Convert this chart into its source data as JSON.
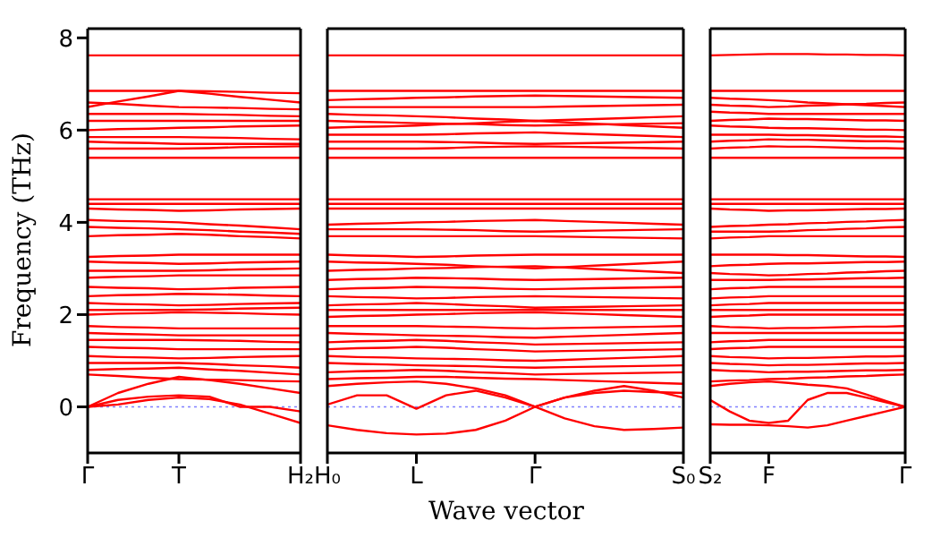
{
  "chart_data": [
    {
      "type": "line",
      "ylabel": "Frequency (THz)",
      "color": "#ff0000",
      "marker": "none",
      "line_style": "solid",
      "categories": [
        "Γ",
        null,
        null,
        "T",
        null,
        null,
        null,
        "H₂"
      ],
      "ylim": [
        -1,
        8.2
      ],
      "yticks": [
        0,
        2,
        4,
        6,
        8
      ],
      "ref_lines": [
        {
          "axis": "y",
          "value": 0,
          "color": "#8080ff",
          "line_style": "dotted"
        }
      ],
      "series": [
        {
          "values": [
            7.62,
            7.62,
            7.62,
            7.62,
            7.62,
            7.62,
            7.62,
            7.62
          ]
        },
        {
          "values": [
            6.85,
            6.85,
            6.85,
            6.85,
            6.84,
            6.83,
            6.81,
            6.8
          ]
        },
        {
          "values": [
            6.5,
            6.62,
            6.73,
            6.85,
            6.79,
            6.72,
            6.66,
            6.6
          ]
        },
        {
          "values": [
            6.6,
            6.57,
            6.53,
            6.5,
            6.49,
            6.48,
            6.46,
            6.45
          ]
        },
        {
          "values": [
            6.35,
            6.35,
            6.35,
            6.35,
            6.34,
            6.33,
            6.31,
            6.3
          ]
        },
        {
          "values": [
            6.2,
            6.2,
            6.2,
            6.2,
            6.2,
            6.2,
            6.2,
            6.2
          ]
        },
        {
          "values": [
            6.0,
            6.02,
            6.03,
            6.05,
            6.06,
            6.08,
            6.09,
            6.1
          ]
        },
        {
          "values": [
            5.85,
            5.85,
            5.85,
            5.85,
            5.84,
            5.83,
            5.81,
            5.8
          ]
        },
        {
          "values": [
            5.75,
            5.73,
            5.72,
            5.7,
            5.7,
            5.7,
            5.7,
            5.7
          ]
        },
        {
          "values": [
            5.6,
            5.6,
            5.6,
            5.6,
            5.61,
            5.63,
            5.64,
            5.65
          ]
        },
        {
          "values": [
            5.4,
            5.4,
            5.4,
            5.4,
            5.4,
            5.4,
            5.4,
            5.4
          ]
        },
        {
          "values": [
            4.5,
            4.5,
            4.5,
            4.5,
            4.5,
            4.5,
            4.5,
            4.5
          ]
        },
        {
          "values": [
            4.4,
            4.4,
            4.4,
            4.4,
            4.4,
            4.4,
            4.4,
            4.4
          ]
        },
        {
          "values": [
            4.3,
            4.28,
            4.27,
            4.25,
            4.26,
            4.28,
            4.29,
            4.3
          ]
        },
        {
          "values": [
            4.05,
            4.03,
            4.02,
            4.0,
            3.96,
            3.93,
            3.89,
            3.85
          ]
        },
        {
          "values": [
            3.9,
            3.88,
            3.87,
            3.85,
            3.83,
            3.8,
            3.78,
            3.75
          ]
        },
        {
          "values": [
            3.7,
            3.72,
            3.73,
            3.75,
            3.73,
            3.7,
            3.68,
            3.65
          ]
        },
        {
          "values": [
            3.25,
            3.27,
            3.28,
            3.3,
            3.3,
            3.3,
            3.3,
            3.3
          ]
        },
        {
          "values": [
            3.15,
            3.13,
            3.12,
            3.1,
            3.11,
            3.13,
            3.14,
            3.15
          ]
        },
        {
          "values": [
            2.95,
            2.95,
            2.95,
            2.95,
            2.96,
            2.98,
            2.99,
            3.0
          ]
        },
        {
          "values": [
            2.8,
            2.82,
            2.83,
            2.85,
            2.85,
            2.85,
            2.85,
            2.85
          ]
        },
        {
          "values": [
            2.6,
            2.58,
            2.57,
            2.55,
            2.56,
            2.58,
            2.59,
            2.6
          ]
        },
        {
          "values": [
            2.4,
            2.42,
            2.43,
            2.45,
            2.44,
            2.43,
            2.41,
            2.4
          ]
        },
        {
          "values": [
            2.25,
            2.23,
            2.22,
            2.2,
            2.21,
            2.23,
            2.24,
            2.25
          ]
        },
        {
          "values": [
            2.1,
            2.1,
            2.1,
            2.1,
            2.11,
            2.13,
            2.14,
            2.15
          ]
        },
        {
          "values": [
            2.0,
            2.02,
            2.03,
            2.05,
            2.04,
            2.03,
            2.01,
            2.0
          ]
        },
        {
          "values": [
            1.75,
            1.73,
            1.72,
            1.7,
            1.7,
            1.7,
            1.7,
            1.7
          ]
        },
        {
          "values": [
            1.6,
            1.58,
            1.57,
            1.55,
            1.55,
            1.55,
            1.55,
            1.55
          ]
        },
        {
          "values": [
            1.45,
            1.45,
            1.45,
            1.45,
            1.44,
            1.43,
            1.41,
            1.4
          ]
        },
        {
          "values": [
            1.3,
            1.28,
            1.27,
            1.25,
            1.25,
            1.25,
            1.25,
            1.25
          ]
        },
        {
          "values": [
            1.1,
            1.08,
            1.07,
            1.05,
            1.06,
            1.08,
            1.09,
            1.1
          ]
        },
        {
          "values": [
            0.95,
            0.95,
            0.95,
            0.95,
            0.93,
            0.9,
            0.88,
            0.85
          ]
        },
        {
          "values": [
            0.8,
            0.82,
            0.83,
            0.85,
            0.81,
            0.78,
            0.74,
            0.7
          ]
        },
        {
          "values": [
            0.7,
            0.67,
            0.63,
            0.6,
            0.59,
            0.58,
            0.56,
            0.55
          ]
        },
        {
          "values": [
            0,
            0.3,
            0.5,
            0.65,
            0.58,
            0.5,
            0.4,
            0.3
          ]
        },
        {
          "values": [
            0,
            0.15,
            0.22,
            0.25,
            0.22,
            0,
            0,
            -0.1
          ]
        },
        {
          "values": [
            0,
            0.05,
            0.15,
            0.2,
            0.17,
            0.05,
            -0.15,
            -0.35
          ]
        }
      ]
    },
    {
      "type": "line",
      "xlabel": "Wave vector",
      "color": "#ff0000",
      "marker": "none",
      "line_style": "solid",
      "tick_labels": "x",
      "categories": [
        "H₀",
        null,
        null,
        "L",
        null,
        null,
        null,
        "Γ",
        null,
        null,
        null,
        null,
        "S₀"
      ],
      "ylim": [
        -1,
        8.2
      ],
      "ref_lines": [
        {
          "axis": "y",
          "value": 0,
          "color": "#8080ff",
          "line_style": "dotted"
        }
      ],
      "series": [
        {
          "values": [
            7.62,
            7.62,
            7.62,
            7.62,
            7.62,
            7.62,
            7.62,
            7.62,
            7.62,
            7.62,
            7.62,
            7.62,
            7.62
          ]
        },
        {
          "values": [
            6.85,
            6.85,
            6.85,
            6.85,
            6.85,
            6.85,
            6.85,
            6.85,
            6.85,
            6.85,
            6.85,
            6.85,
            6.85
          ]
        },
        {
          "values": [
            6.65,
            6.67,
            6.68,
            6.7,
            6.71,
            6.73,
            6.74,
            6.75,
            6.74,
            6.73,
            6.72,
            6.71,
            6.7
          ]
        },
        {
          "values": [
            6.5,
            6.5,
            6.5,
            6.5,
            6.5,
            6.5,
            6.5,
            6.5,
            6.51,
            6.52,
            6.53,
            6.54,
            6.55
          ]
        },
        {
          "values": [
            6.35,
            6.33,
            6.32,
            6.3,
            6.28,
            6.25,
            6.23,
            6.2,
            6.22,
            6.24,
            6.26,
            6.28,
            6.3
          ]
        },
        {
          "values": [
            6.2,
            6.18,
            6.17,
            6.15,
            6.14,
            6.13,
            6.11,
            6.1,
            6.11,
            6.12,
            6.13,
            6.14,
            6.15
          ]
        },
        {
          "values": [
            6.05,
            6.07,
            6.08,
            6.1,
            6.13,
            6.15,
            6.18,
            6.2,
            6.17,
            6.14,
            6.11,
            6.08,
            6.05
          ]
        },
        {
          "values": [
            5.9,
            5.9,
            5.9,
            5.9,
            5.91,
            5.93,
            5.94,
            5.95,
            5.93,
            5.91,
            5.89,
            5.87,
            5.85
          ]
        },
        {
          "values": [
            5.75,
            5.75,
            5.75,
            5.75,
            5.74,
            5.73,
            5.71,
            5.7,
            5.71,
            5.72,
            5.73,
            5.74,
            5.75
          ]
        },
        {
          "values": [
            5.6,
            5.6,
            5.6,
            5.6,
            5.61,
            5.63,
            5.64,
            5.65,
            5.64,
            5.63,
            5.62,
            5.61,
            5.6
          ]
        },
        {
          "values": [
            5.4,
            5.4,
            5.4,
            5.4,
            5.4,
            5.4,
            5.4,
            5.4,
            5.4,
            5.4,
            5.4,
            5.4,
            5.4
          ]
        },
        {
          "values": [
            4.5,
            4.5,
            4.5,
            4.5,
            4.5,
            4.5,
            4.5,
            4.5,
            4.5,
            4.5,
            4.5,
            4.5,
            4.5
          ]
        },
        {
          "values": [
            4.4,
            4.4,
            4.4,
            4.4,
            4.4,
            4.4,
            4.4,
            4.4,
            4.4,
            4.4,
            4.4,
            4.4,
            4.4
          ]
        },
        {
          "values": [
            4.3,
            4.3,
            4.3,
            4.3,
            4.3,
            4.3,
            4.3,
            4.3,
            4.3,
            4.3,
            4.3,
            4.3,
            4.3
          ]
        },
        {
          "values": [
            3.95,
            3.97,
            3.98,
            4.0,
            4.01,
            4.03,
            4.04,
            4.05,
            4.03,
            4.01,
            3.99,
            3.97,
            3.95
          ]
        },
        {
          "values": [
            3.85,
            3.85,
            3.85,
            3.85,
            3.84,
            3.83,
            3.81,
            3.8,
            3.81,
            3.82,
            3.83,
            3.84,
            3.85
          ]
        },
        {
          "values": [
            3.7,
            3.7,
            3.7,
            3.7,
            3.7,
            3.7,
            3.7,
            3.7,
            3.69,
            3.68,
            3.67,
            3.66,
            3.65
          ]
        },
        {
          "values": [
            3.3,
            3.28,
            3.27,
            3.25,
            3.26,
            3.28,
            3.29,
            3.3,
            3.3,
            3.3,
            3.3,
            3.3,
            3.3
          ]
        },
        {
          "values": [
            3.15,
            3.13,
            3.12,
            3.1,
            3.08,
            3.05,
            3.03,
            3.0,
            3.03,
            3.06,
            3.09,
            3.12,
            3.15
          ]
        },
        {
          "values": [
            2.95,
            2.97,
            2.98,
            3.0,
            3.01,
            3.03,
            3.04,
            3.05,
            3.02,
            2.99,
            2.96,
            2.93,
            2.9
          ]
        },
        {
          "values": [
            2.75,
            2.77,
            2.78,
            2.8,
            2.79,
            2.78,
            2.76,
            2.75,
            2.76,
            2.77,
            2.78,
            2.79,
            2.8
          ]
        },
        {
          "values": [
            2.55,
            2.57,
            2.58,
            2.6,
            2.59,
            2.58,
            2.56,
            2.55,
            2.56,
            2.57,
            2.58,
            2.59,
            2.6
          ]
        },
        {
          "values": [
            2.4,
            2.38,
            2.37,
            2.35,
            2.36,
            2.38,
            2.39,
            2.4,
            2.39,
            2.38,
            2.37,
            2.36,
            2.35
          ]
        },
        {
          "values": [
            2.2,
            2.22,
            2.23,
            2.25,
            2.23,
            2.2,
            2.18,
            2.15,
            2.16,
            2.17,
            2.18,
            2.19,
            2.2
          ]
        },
        {
          "values": [
            2.1,
            2.1,
            2.1,
            2.1,
            2.1,
            2.1,
            2.1,
            2.1,
            2.1,
            2.1,
            2.1,
            2.1,
            2.1
          ]
        },
        {
          "values": [
            1.95,
            1.97,
            1.98,
            2.0,
            2.01,
            2.03,
            2.04,
            2.05,
            2.03,
            2.01,
            1.99,
            1.97,
            1.95
          ]
        },
        {
          "values": [
            1.75,
            1.75,
            1.75,
            1.75,
            1.74,
            1.73,
            1.71,
            1.7,
            1.71,
            1.72,
            1.73,
            1.74,
            1.75
          ]
        },
        {
          "values": [
            1.6,
            1.58,
            1.57,
            1.55,
            1.54,
            1.53,
            1.51,
            1.5,
            1.52,
            1.54,
            1.56,
            1.58,
            1.6
          ]
        },
        {
          "values": [
            1.4,
            1.42,
            1.43,
            1.45,
            1.43,
            1.4,
            1.38,
            1.35,
            1.36,
            1.37,
            1.38,
            1.39,
            1.4
          ]
        },
        {
          "values": [
            1.25,
            1.27,
            1.28,
            1.3,
            1.28,
            1.25,
            1.23,
            1.2,
            1.21,
            1.22,
            1.23,
            1.24,
            1.25
          ]
        },
        {
          "values": [
            1.1,
            1.08,
            1.07,
            1.05,
            1.04,
            1.03,
            1.01,
            1.0,
            1.02,
            1.04,
            1.06,
            1.08,
            1.1
          ]
        },
        {
          "values": [
            0.95,
            0.93,
            0.92,
            0.9,
            0.89,
            0.88,
            0.86,
            0.85,
            0.86,
            0.87,
            0.88,
            0.89,
            0.9
          ]
        },
        {
          "values": [
            0.75,
            0.77,
            0.78,
            0.8,
            0.78,
            0.75,
            0.73,
            0.7,
            0.71,
            0.72,
            0.73,
            0.74,
            0.75
          ]
        },
        {
          "values": [
            0.6,
            0.62,
            0.63,
            0.65,
            0.65,
            0.63,
            0.61,
            0.6,
            0.58,
            0.56,
            0.54,
            0.52,
            0.5
          ]
        },
        {
          "values": [
            -0.4,
            -0.5,
            -0.57,
            -0.6,
            -0.58,
            -0.5,
            -0.3,
            0,
            -0.25,
            -0.42,
            -0.5,
            -0.48,
            -0.45
          ]
        },
        {
          "values": [
            0.05,
            0.25,
            0.25,
            -0.04,
            0.25,
            0.35,
            0.2,
            0,
            0.2,
            0.35,
            0.45,
            0.35,
            0.2
          ]
        },
        {
          "values": [
            0.45,
            0.5,
            0.53,
            0.55,
            0.5,
            0.4,
            0.25,
            0,
            0.2,
            0.3,
            0.35,
            0.32,
            0.3
          ]
        }
      ]
    },
    {
      "type": "line",
      "color": "#ff0000",
      "marker": "none",
      "line_style": "solid",
      "tick_labels": "x",
      "categories": [
        "S₂",
        null,
        null,
        "F",
        null,
        null,
        null,
        null,
        null,
        null,
        "Γ"
      ],
      "ylim": [
        -1,
        8.2
      ],
      "ref_lines": [
        {
          "axis": "y",
          "value": 0,
          "color": "#8080ff",
          "line_style": "dotted"
        }
      ],
      "series": [
        {
          "values": [
            7.62,
            7.63,
            7.64,
            7.65,
            7.65,
            7.65,
            7.64,
            7.64,
            7.63,
            7.63,
            7.62
          ]
        },
        {
          "values": [
            6.85,
            6.85,
            6.85,
            6.85,
            6.85,
            6.85,
            6.85,
            6.85,
            6.85,
            6.85,
            6.85
          ]
        },
        {
          "values": [
            6.7,
            6.68,
            6.67,
            6.65,
            6.63,
            6.6,
            6.58,
            6.56,
            6.54,
            6.52,
            6.5
          ]
        },
        {
          "values": [
            6.55,
            6.53,
            6.52,
            6.5,
            6.51,
            6.53,
            6.54,
            6.56,
            6.57,
            6.59,
            6.6
          ]
        },
        {
          "values": [
            6.4,
            6.38,
            6.37,
            6.35,
            6.35,
            6.35,
            6.35,
            6.35,
            6.35,
            6.35,
            6.35
          ]
        },
        {
          "values": [
            6.2,
            6.22,
            6.23,
            6.25,
            6.24,
            6.24,
            6.23,
            6.22,
            6.21,
            6.21,
            6.2
          ]
        },
        {
          "values": [
            6.1,
            6.08,
            6.07,
            6.05,
            6.04,
            6.04,
            6.03,
            6.02,
            6.01,
            6.01,
            6.0
          ]
        },
        {
          "values": [
            5.9,
            5.9,
            5.9,
            5.9,
            5.89,
            5.89,
            5.88,
            5.87,
            5.86,
            5.86,
            5.85
          ]
        },
        {
          "values": [
            5.75,
            5.77,
            5.78,
            5.8,
            5.79,
            5.79,
            5.78,
            5.77,
            5.76,
            5.76,
            5.75
          ]
        },
        {
          "values": [
            5.6,
            5.62,
            5.63,
            5.65,
            5.64,
            5.64,
            5.63,
            5.62,
            5.61,
            5.61,
            5.6
          ]
        },
        {
          "values": [
            5.4,
            5.4,
            5.4,
            5.4,
            5.4,
            5.4,
            5.4,
            5.4,
            5.4,
            5.4,
            5.4
          ]
        },
        {
          "values": [
            4.5,
            4.5,
            4.5,
            4.5,
            4.5,
            4.5,
            4.5,
            4.5,
            4.5,
            4.5,
            4.5
          ]
        },
        {
          "values": [
            4.4,
            4.4,
            4.4,
            4.4,
            4.4,
            4.4,
            4.4,
            4.4,
            4.4,
            4.4,
            4.4
          ]
        },
        {
          "values": [
            4.3,
            4.28,
            4.27,
            4.25,
            4.26,
            4.26,
            4.27,
            4.28,
            4.29,
            4.29,
            4.3
          ]
        },
        {
          "values": [
            3.9,
            3.92,
            3.93,
            3.95,
            3.96,
            3.98,
            3.99,
            4.01,
            4.02,
            4.04,
            4.05
          ]
        },
        {
          "values": [
            3.8,
            3.8,
            3.8,
            3.8,
            3.81,
            3.83,
            3.84,
            3.86,
            3.87,
            3.89,
            3.9
          ]
        },
        {
          "values": [
            3.65,
            3.67,
            3.68,
            3.7,
            3.7,
            3.7,
            3.7,
            3.7,
            3.7,
            3.7,
            3.7
          ]
        },
        {
          "values": [
            3.3,
            3.3,
            3.3,
            3.3,
            3.29,
            3.29,
            3.28,
            3.27,
            3.26,
            3.26,
            3.25
          ]
        },
        {
          "values": [
            3.05,
            3.07,
            3.08,
            3.1,
            3.11,
            3.11,
            3.12,
            3.13,
            3.14,
            3.14,
            3.15
          ]
        },
        {
          "values": [
            2.9,
            2.88,
            2.87,
            2.85,
            2.86,
            2.88,
            2.89,
            2.91,
            2.92,
            2.94,
            2.95
          ]
        },
        {
          "values": [
            2.75,
            2.75,
            2.75,
            2.75,
            2.76,
            2.76,
            2.77,
            2.78,
            2.79,
            2.79,
            2.8
          ]
        },
        {
          "values": [
            2.55,
            2.57,
            2.58,
            2.6,
            2.6,
            2.6,
            2.6,
            2.6,
            2.6,
            2.6,
            2.6
          ]
        },
        {
          "values": [
            2.35,
            2.37,
            2.38,
            2.4,
            2.4,
            2.4,
            2.4,
            2.4,
            2.4,
            2.4,
            2.4
          ]
        },
        {
          "values": [
            2.2,
            2.22,
            2.23,
            2.25,
            2.25,
            2.25,
            2.25,
            2.25,
            2.25,
            2.25,
            2.25
          ]
        },
        {
          "values": [
            2.1,
            2.1,
            2.1,
            2.1,
            2.1,
            2.1,
            2.1,
            2.1,
            2.1,
            2.1,
            2.1
          ]
        },
        {
          "values": [
            1.95,
            1.97,
            1.98,
            2.0,
            2.0,
            2.0,
            2.0,
            2.0,
            2.0,
            2.0,
            2.0
          ]
        },
        {
          "values": [
            1.75,
            1.73,
            1.72,
            1.7,
            1.71,
            1.71,
            1.72,
            1.73,
            1.74,
            1.74,
            1.75
          ]
        },
        {
          "values": [
            1.6,
            1.6,
            1.6,
            1.6,
            1.6,
            1.6,
            1.6,
            1.6,
            1.6,
            1.6,
            1.6
          ]
        },
        {
          "values": [
            1.4,
            1.42,
            1.43,
            1.45,
            1.45,
            1.45,
            1.45,
            1.45,
            1.45,
            1.45,
            1.45
          ]
        },
        {
          "values": [
            1.25,
            1.27,
            1.28,
            1.3,
            1.3,
            1.3,
            1.3,
            1.3,
            1.3,
            1.3,
            1.3
          ]
        },
        {
          "values": [
            1.1,
            1.08,
            1.07,
            1.05,
            1.06,
            1.06,
            1.07,
            1.08,
            1.09,
            1.09,
            1.1
          ]
        },
        {
          "values": [
            0.95,
            0.93,
            0.92,
            0.9,
            0.91,
            0.91,
            0.92,
            0.93,
            0.94,
            0.94,
            0.95
          ]
        },
        {
          "values": [
            0.8,
            0.78,
            0.77,
            0.75,
            0.76,
            0.76,
            0.77,
            0.78,
            0.79,
            0.79,
            0.8
          ]
        },
        {
          "values": [
            0.55,
            0.57,
            0.58,
            0.6,
            0.61,
            0.63,
            0.64,
            0.66,
            0.67,
            0.69,
            0.7
          ]
        },
        {
          "values": [
            0.15,
            -0.1,
            -0.3,
            -0.35,
            -0.3,
            0.15,
            0.3,
            0.3,
            0.2,
            0.1,
            0
          ]
        },
        {
          "values": [
            -0.38,
            -0.39,
            -0.39,
            -0.4,
            -0.42,
            -0.45,
            -0.4,
            -0.3,
            -0.2,
            -0.1,
            0
          ]
        },
        {
          "values": [
            0.45,
            0.5,
            0.53,
            0.55,
            0.52,
            0.48,
            0.45,
            0.4,
            0.27,
            0.13,
            0
          ]
        }
      ]
    }
  ]
}
